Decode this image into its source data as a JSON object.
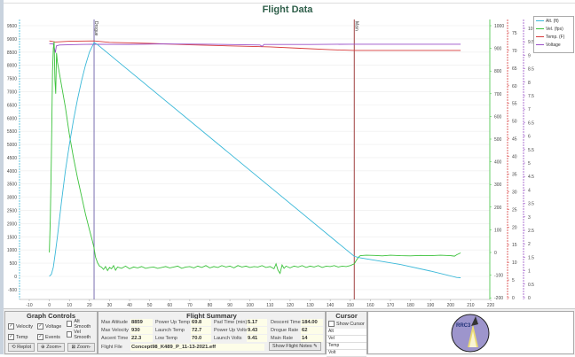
{
  "title": "Flight Data",
  "legend": [
    {
      "label": "Alt. (ft)",
      "color": "#3ab8d8"
    },
    {
      "label": "Vel. (fps)",
      "color": "#3cc23c"
    },
    {
      "label": "Temp. (F)",
      "color": "#d83a3a"
    },
    {
      "label": "Voltage",
      "color": "#9a4fc8"
    }
  ],
  "chart_data": {
    "type": "line",
    "x": {
      "range": [
        -10,
        220
      ],
      "ticks": [
        "-10",
        "0",
        "10",
        "20",
        "30",
        "40",
        "50",
        "60",
        "70",
        "80",
        "90",
        "100",
        "110",
        "120",
        "130",
        "140",
        "150",
        "160",
        "170",
        "180",
        "190",
        "200",
        "210",
        "220"
      ]
    },
    "axes": {
      "altitude": {
        "range": [
          -500,
          9500
        ],
        "ticks": [
          "-500",
          "0",
          "500",
          "1000",
          "1500",
          "2000",
          "2500",
          "3000",
          "3500",
          "4000",
          "4500",
          "5000",
          "5500",
          "6000",
          "6500",
          "7000",
          "7500",
          "8000",
          "8500",
          "9000",
          "9500"
        ],
        "color": "#3ab8d8"
      },
      "velocity": {
        "range": [
          -200,
          1000
        ],
        "ticks": [
          "-200",
          "-100",
          "0",
          "100",
          "200",
          "300",
          "400",
          "500",
          "600",
          "700",
          "800",
          "900",
          "1000"
        ],
        "color": "#3cc23c"
      },
      "temp": {
        "range": [
          0,
          75
        ],
        "ticks": [
          "0",
          "5",
          "10",
          "15",
          "20",
          "25",
          "30",
          "35",
          "40",
          "45",
          "50",
          "55",
          "60",
          "65",
          "70",
          "75"
        ],
        "color": "#d83a3a"
      },
      "voltage": {
        "range": [
          0,
          10
        ],
        "ticks": [
          "0",
          "0.5",
          "1",
          "1.5",
          "2",
          "2.5",
          "3",
          "3.5",
          "4",
          "4.5",
          "5",
          "5.5",
          "6",
          "6.5",
          "7",
          "7.5",
          "8",
          "8.5",
          "9",
          "9.5",
          "10"
        ],
        "color": "#9a4fc8"
      }
    },
    "events": [
      {
        "label": "Drogue",
        "t": 22.3,
        "color": "#7a6fb0"
      },
      {
        "label": "Main",
        "t": 152,
        "color": "#a04040"
      }
    ],
    "series": [
      {
        "name": "Alt. (ft)",
        "axis": "altitude",
        "points": [
          [
            0,
            0
          ],
          [
            1,
            80
          ],
          [
            2,
            350
          ],
          [
            3,
            900
          ],
          [
            4,
            1500
          ],
          [
            6,
            2800
          ],
          [
            8,
            4000
          ],
          [
            10,
            5000
          ],
          [
            12,
            5900
          ],
          [
            14,
            6700
          ],
          [
            16,
            7400
          ],
          [
            18,
            8000
          ],
          [
            20,
            8500
          ],
          [
            22.3,
            8859
          ],
          [
            24,
            8780
          ],
          [
            152,
            760
          ],
          [
            155,
            700
          ],
          [
            175,
            450
          ],
          [
            190,
            200
          ],
          [
            203,
            -40
          ],
          [
            205,
            -50
          ]
        ]
      },
      {
        "name": "Vel. (fps)",
        "axis": "velocity",
        "points": [
          [
            0,
            0
          ],
          [
            0.5,
            150
          ],
          [
            1,
            420
          ],
          [
            1.6,
            800
          ],
          [
            2,
            900
          ],
          [
            2.4,
            930
          ],
          [
            2.8,
            760
          ],
          [
            3.2,
            700
          ],
          [
            3.6,
            880
          ],
          [
            4,
            840
          ],
          [
            6,
            740
          ],
          [
            8,
            640
          ],
          [
            10,
            520
          ],
          [
            12,
            420
          ],
          [
            14,
            330
          ],
          [
            16,
            250
          ],
          [
            18,
            170
          ],
          [
            20,
            100
          ],
          [
            21.5,
            50
          ],
          [
            22.3,
            20
          ],
          [
            23,
            -20
          ],
          [
            24,
            -45
          ],
          [
            25,
            -60
          ],
          [
            26,
            -65
          ],
          [
            27,
            -75
          ],
          [
            28,
            -62
          ],
          [
            29,
            -80
          ],
          [
            30,
            -66
          ],
          [
            31,
            -72
          ],
          [
            32,
            -58
          ],
          [
            33,
            -78
          ],
          [
            34,
            -64
          ],
          [
            36,
            -70
          ],
          [
            38,
            -60
          ],
          [
            40,
            -72
          ],
          [
            42,
            -64
          ],
          [
            44,
            -68
          ],
          [
            46,
            -62
          ],
          [
            48,
            -70
          ],
          [
            50,
            -66
          ],
          [
            52,
            -64
          ],
          [
            54,
            -70
          ],
          [
            56,
            -66
          ],
          [
            58,
            -62
          ],
          [
            60,
            -68
          ],
          [
            62,
            -64
          ],
          [
            64,
            -60
          ],
          [
            66,
            -70
          ],
          [
            68,
            -64
          ],
          [
            70,
            -62
          ],
          [
            72,
            -68
          ],
          [
            74,
            -60
          ],
          [
            76,
            -66
          ],
          [
            78,
            -58
          ],
          [
            80,
            -68
          ],
          [
            82,
            -62
          ],
          [
            84,
            -66
          ],
          [
            86,
            -58
          ],
          [
            88,
            -64
          ],
          [
            90,
            -60
          ],
          [
            92,
            -68
          ],
          [
            94,
            -58
          ],
          [
            96,
            -64
          ],
          [
            98,
            -60
          ],
          [
            100,
            -66
          ],
          [
            102,
            -62
          ],
          [
            104,
            -64
          ],
          [
            106,
            -58
          ],
          [
            108,
            -66
          ],
          [
            110,
            -62
          ],
          [
            112,
            -72
          ],
          [
            113,
            -50
          ],
          [
            114,
            -78
          ],
          [
            115,
            -92
          ],
          [
            116,
            -55
          ],
          [
            117,
            -70
          ],
          [
            118,
            -60
          ],
          [
            120,
            -68
          ],
          [
            122,
            -60
          ],
          [
            124,
            -64
          ],
          [
            126,
            -58
          ],
          [
            128,
            -66
          ],
          [
            130,
            -60
          ],
          [
            132,
            -64
          ],
          [
            134,
            -58
          ],
          [
            136,
            -66
          ],
          [
            138,
            -60
          ],
          [
            140,
            -62
          ],
          [
            142,
            -58
          ],
          [
            144,
            -64
          ],
          [
            146,
            -60
          ],
          [
            148,
            -62
          ],
          [
            150,
            -58
          ],
          [
            152,
            -50
          ],
          [
            153,
            -35
          ],
          [
            154,
            -22
          ],
          [
            155,
            -14
          ],
          [
            158,
            -12
          ],
          [
            162,
            -13
          ],
          [
            166,
            -15
          ],
          [
            170,
            -12
          ],
          [
            175,
            -14
          ],
          [
            180,
            -15
          ],
          [
            185,
            -13
          ],
          [
            190,
            -14
          ],
          [
            195,
            -12
          ],
          [
            200,
            -14
          ],
          [
            202,
            -16
          ],
          [
            203,
            -10
          ],
          [
            205,
            -2
          ]
        ]
      },
      {
        "name": "Temp. (F)",
        "axis": "temp",
        "points": [
          [
            0,
            72.7
          ],
          [
            3,
            72.4
          ],
          [
            10,
            72.6
          ],
          [
            22.3,
            72.7
          ],
          [
            30,
            72.3
          ],
          [
            50,
            72.0
          ],
          [
            70,
            71.6
          ],
          [
            90,
            71.3
          ],
          [
            110,
            71.0
          ],
          [
            125,
            70.6
          ],
          [
            140,
            70.2
          ],
          [
            152,
            70.0
          ],
          [
            205,
            70.0
          ]
        ]
      },
      {
        "name": "Voltage",
        "axis": "voltage",
        "points": [
          [
            0,
            9.43
          ],
          [
            2,
            9.42
          ],
          [
            3,
            9.1
          ],
          [
            3.5,
            9.35
          ],
          [
            5,
            9.38
          ],
          [
            15,
            9.4
          ],
          [
            22.3,
            9.41
          ],
          [
            40,
            9.4
          ],
          [
            55,
            9.42
          ],
          [
            80,
            9.41
          ],
          [
            105,
            9.38
          ],
          [
            106,
            9.33
          ],
          [
            107,
            9.4
          ],
          [
            130,
            9.4
          ],
          [
            150,
            9.41
          ],
          [
            205,
            9.41
          ]
        ]
      }
    ]
  },
  "graph_controls": {
    "title": "Graph Controls",
    "checkboxes": [
      {
        "label": "Velocity",
        "checked": true
      },
      {
        "label": "Voltage",
        "checked": true
      },
      {
        "label": "Alt Smooth",
        "checked": false
      },
      {
        "label": "Temp",
        "checked": true
      },
      {
        "label": "Events",
        "checked": true
      },
      {
        "label": "Vel Smooth",
        "checked": false
      }
    ],
    "replot": "Replot",
    "zoom_in": "Zoom+",
    "zoom_out": "Zoom-"
  },
  "flight_summary": {
    "title": "Flight Summary",
    "max_altitude_label": "Max Altitude",
    "max_altitude": "8859",
    "max_velocity_label": "Max Velocity",
    "max_velocity": "930",
    "ascent_time_label": "Ascent Time",
    "ascent_time": "22.3",
    "power_up_temp_label": "Power Up Temp",
    "power_up_temp": "69.8",
    "launch_temp_label": "Launch Temp",
    "launch_temp": "72.7",
    "low_temp_label": "Low Temp",
    "low_temp": "70.0",
    "pad_time_label": "Pad Time (min)",
    "pad_time": "5.17",
    "power_up_volts_label": "Power Up Volts",
    "power_up_volts": "9.43",
    "launch_volts_label": "Launch Volts",
    "launch_volts": "9.41",
    "descent_time_label": "Descent Time",
    "descent_time": "184.00",
    "drogue_rate_label": "Drogue Rate",
    "drogue_rate": "62",
    "main_rate_label": "Main Rate",
    "main_rate": "14",
    "flight_file_label": "Flight File",
    "flight_file": "Concept98_K489_P_11-13-2021.eff",
    "show_notes": "Show Flight Notes"
  },
  "cursor": {
    "title": "Cursor",
    "show_cursor": "Show Cursor",
    "rows": [
      "Alt",
      "Vel",
      "Temp",
      "Volt"
    ]
  },
  "logo": {
    "text": "RRC3"
  }
}
